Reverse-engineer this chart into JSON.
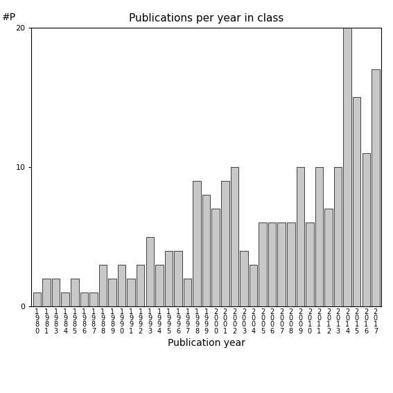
{
  "title": "Publications per year in class",
  "xlabel": "Publication year",
  "ylabel": "#P",
  "years": [
    "1980",
    "1981",
    "1983",
    "1984",
    "1985",
    "1986",
    "1987",
    "1988",
    "1989",
    "1990",
    "1991",
    "1992",
    "1993",
    "1994",
    "1995",
    "1996",
    "1997",
    "1998",
    "1999",
    "2000",
    "2001",
    "2002",
    "2003",
    "2004",
    "2005",
    "2006",
    "2007",
    "2008",
    "2009",
    "2010",
    "2011",
    "2012",
    "2013",
    "2014",
    "2015",
    "2016",
    "2017"
  ],
  "values": [
    1,
    2,
    2,
    1,
    2,
    1,
    1,
    3,
    2,
    3,
    2,
    3,
    5,
    3,
    4,
    4,
    2,
    9,
    8,
    7,
    9,
    10,
    4,
    3,
    6,
    6,
    6,
    6,
    10,
    6,
    10,
    7,
    10,
    20,
    15,
    11,
    17
  ],
  "bar_color": "#c8c8c8",
  "bar_edgecolor": "#000000",
  "ylim": [
    0,
    20
  ],
  "yticks": [
    0,
    10,
    20
  ],
  "background_color": "#ffffff",
  "title_fontsize": 11,
  "label_fontsize": 10,
  "tick_fontsize": 8,
  "xtick_fontsize": 7
}
